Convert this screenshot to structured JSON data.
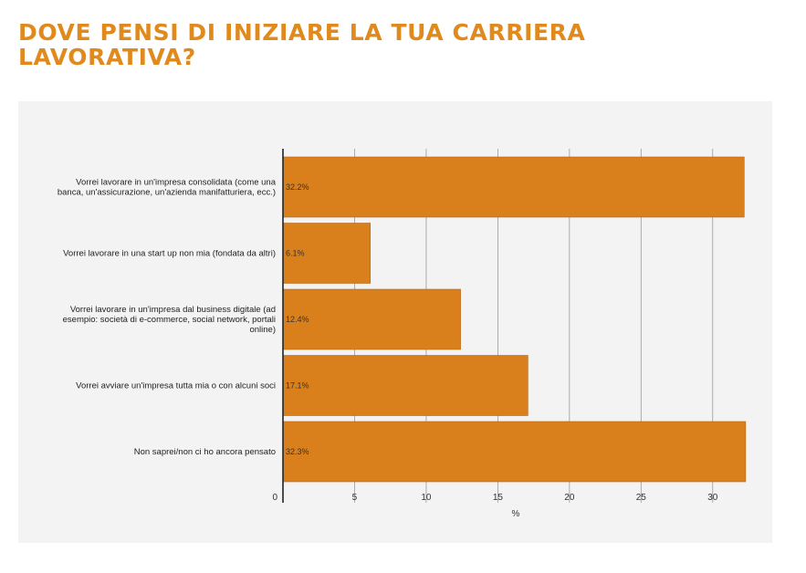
{
  "title": "DOVE PENSI DI INIZIARE LA TUA CARRIERA LAVORATIVA?",
  "chart_data": {
    "type": "bar",
    "orientation": "horizontal",
    "categories": [
      "Vorrei lavorare in un'impresa consolidata (come una banca, un'assicurazione, un'azienda manifatturiera, ecc.)",
      "Vorrei lavorare in una start up non mia (fondata da altri)",
      "Vorrei lavorare in un'impresa dal business digitale (ad esempio: società di e-commerce, social network, portali online)",
      "Vorrei avviare un'impresa tutta mia o con alcuni soci",
      "Non saprei/non ci ho ancora pensato"
    ],
    "category_lines": [
      [
        "Vorrei lavorare in un'impresa consolidata (come una",
        "banca, un'assicurazione, un'azienda manifatturiera, ecc.)"
      ],
      [
        "Vorrei lavorare in una start up non mia (fondata da altri)"
      ],
      [
        "Vorrei lavorare in un'impresa dal business digitale (ad",
        "esempio: società di e-commerce, social network, portali",
        "online)"
      ],
      [
        "Vorrei avviare un'impresa tutta mia o con alcuni soci"
      ],
      [
        "Non saprei/non ci ho ancora pensato"
      ]
    ],
    "values": [
      32.2,
      6.1,
      12.4,
      17.1,
      32.3
    ],
    "data_labels": [
      "32.2%",
      "6.1%",
      "12.4%",
      "17.1%",
      "32.3%"
    ],
    "xlabel": "%",
    "ylabel": "",
    "xlim": [
      0,
      32.5
    ],
    "xticks": [
      0,
      5,
      10,
      15,
      20,
      25,
      30
    ],
    "grid": true,
    "colors": {
      "bar": "#d9801c",
      "bar_edge": "#b5651a",
      "grid": "#9a9a9a",
      "axis": "#222222",
      "title": "#e08a1e",
      "panel": "#f3f3f3"
    }
  }
}
